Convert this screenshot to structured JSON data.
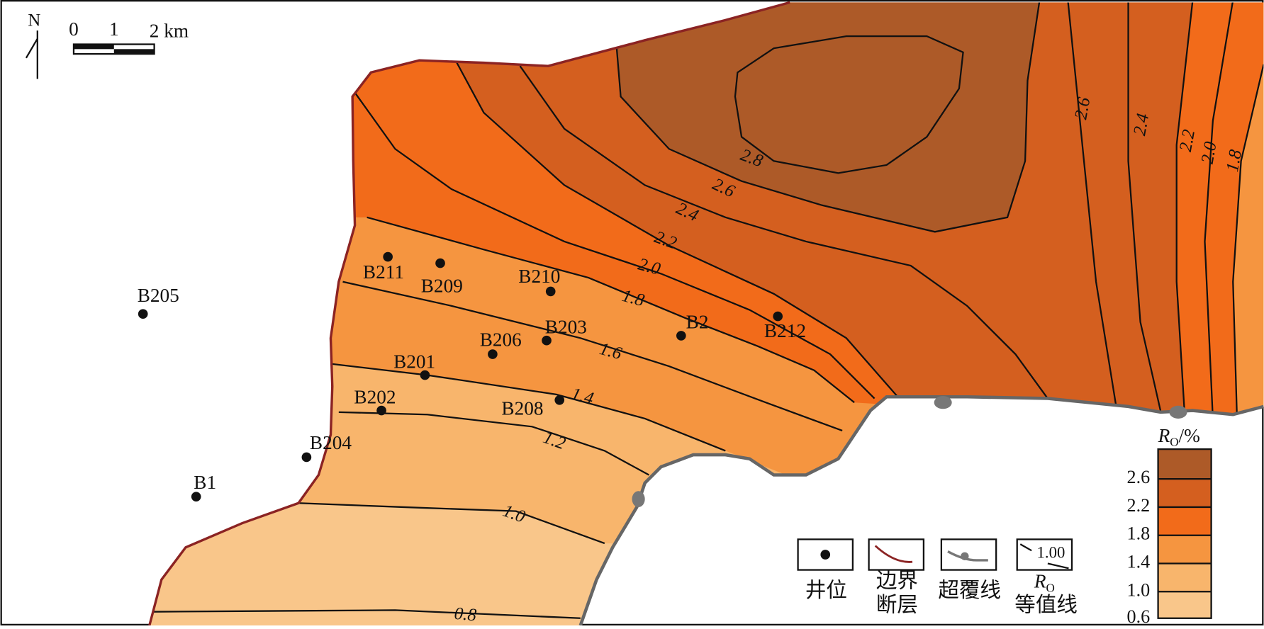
{
  "north": "N",
  "scale_labels": [
    "0",
    "1",
    "2 km"
  ],
  "wells": [
    "B205",
    "B211",
    "B209",
    "B210",
    "B206",
    "B203",
    "B2",
    "B212",
    "B201",
    "B202",
    "B208",
    "B204",
    "B1"
  ],
  "contour_labels": [
    "2.8",
    "2.6",
    "2.4",
    "2.2",
    "2.0",
    "1.8",
    "1.6",
    "1.4",
    "1.2",
    "1.0",
    "0.8",
    "2.6",
    "2.4",
    "2.2",
    "2.0",
    "1.8"
  ],
  "ro_legend": {
    "symbol": "R",
    "subscript": "O",
    "unit": "/%",
    "ticks": [
      "2.6",
      "2.2",
      "1.8",
      "1.4",
      "1.0",
      "0.6"
    ]
  },
  "symbols": [
    {
      "lines": [
        "井位"
      ]
    },
    {
      "lines": [
        "边界",
        "断层"
      ]
    },
    {
      "lines": [
        "超覆线"
      ]
    },
    {
      "symbol": "R",
      "subscript": "O",
      "lines": [
        "等值线"
      ],
      "sample": "1.00"
    }
  ]
}
